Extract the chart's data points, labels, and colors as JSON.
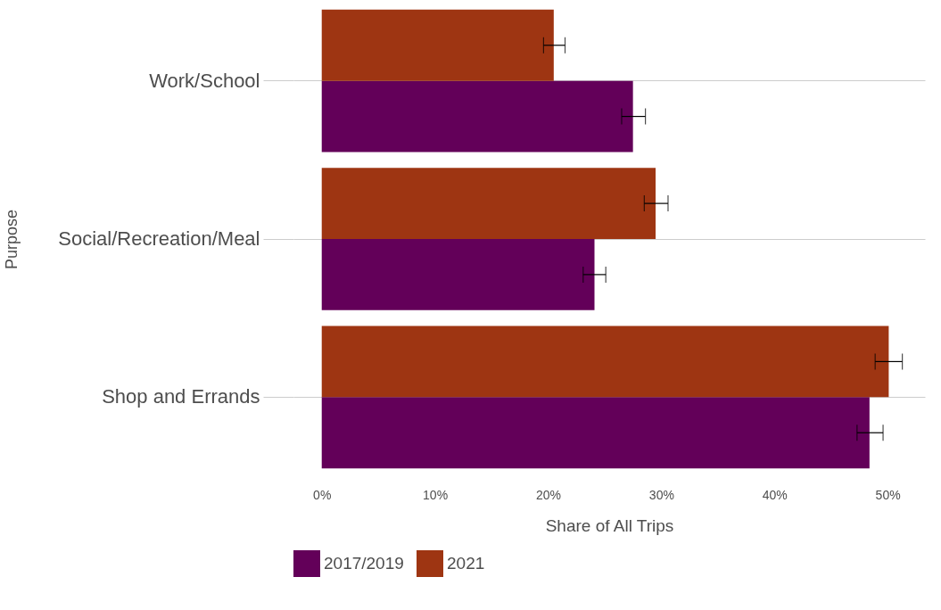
{
  "chart_data": {
    "type": "bar",
    "orientation": "horizontal",
    "xlabel": "Share of All Trips",
    "ylabel": "Purpose",
    "categories": [
      "Work/School",
      "Social/Recreation/Meal",
      "Shop and Errands"
    ],
    "series": [
      {
        "name": "2017/2019",
        "color": "#630059",
        "values": [
          27.5,
          24.1,
          48.4
        ],
        "errors": [
          [
            26.5,
            28.6
          ],
          [
            23.1,
            25.1
          ],
          [
            47.3,
            49.6
          ]
        ]
      },
      {
        "name": "2021",
        "color": "#9e3512",
        "values": [
          20.5,
          29.5,
          50.1
        ],
        "errors": [
          [
            19.6,
            21.5
          ],
          [
            28.5,
            30.6
          ],
          [
            48.9,
            51.3
          ]
        ]
      }
    ],
    "xlim": [
      -2.5,
      53.3
    ],
    "xticks": [
      {
        "value": 0,
        "label": "0%"
      },
      {
        "value": 10,
        "label": "10%"
      },
      {
        "value": 20,
        "label": "20%"
      },
      {
        "value": 30,
        "label": "30%"
      },
      {
        "value": 40,
        "label": "40%"
      },
      {
        "value": 50,
        "label": "50%"
      }
    ],
    "grid": "y",
    "legend": "bottom"
  }
}
